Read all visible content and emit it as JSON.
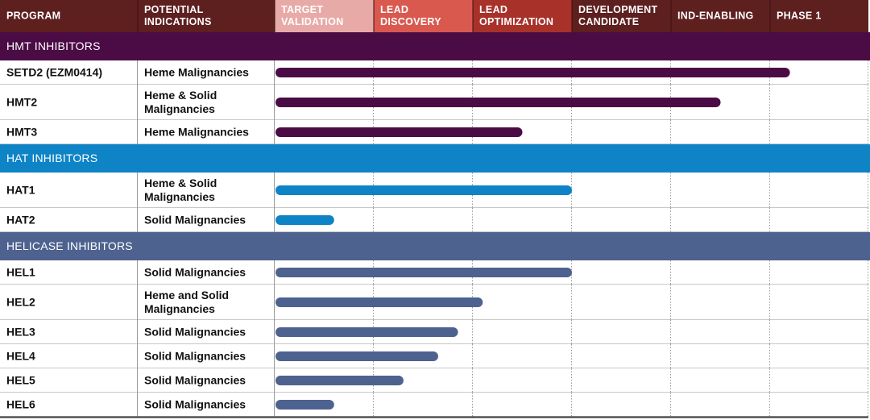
{
  "chart_data": {
    "type": "bar",
    "title": "",
    "columns": [
      {
        "label": "PROGRAM",
        "color": "#5e1f1f",
        "text_color": "#ffffff"
      },
      {
        "label": "POTENTIAL INDICATIONS",
        "color": "#5e1f1f",
        "text_color": "#ffffff"
      },
      {
        "label": "TARGET VALIDATION",
        "color": "#e8aaa6",
        "text_color": "#ffffff"
      },
      {
        "label": "LEAD DISCOVERY",
        "color": "#d9594f",
        "text_color": "#ffffff"
      },
      {
        "label": "LEAD OPTIMIZATION",
        "color": "#a8312a",
        "text_color": "#ffffff"
      },
      {
        "label": "DEVELOPMENT CANDIDATE",
        "color": "#5e1f1f",
        "text_color": "#ffffff"
      },
      {
        "label": "IND-ENABLING",
        "color": "#5e1f1f",
        "text_color": "#ffffff"
      },
      {
        "label": "PHASE 1",
        "color": "#5e1f1f",
        "text_color": "#ffffff"
      }
    ],
    "stages": [
      "TARGET VALIDATION",
      "LEAD DISCOVERY",
      "LEAD OPTIMIZATION",
      "DEVELOPMENT CANDIDATE",
      "IND-ENABLING",
      "PHASE 1"
    ],
    "value_units": "stages completed (0-6)",
    "sections": [
      {
        "label": "HMT INHIBITORS",
        "color": "#4b0c45",
        "bar_color": "#4b0c45",
        "rows": [
          {
            "program": "SETD2 (EZM0414)",
            "indication": "Heme Malignancies",
            "progress": 5.2
          },
          {
            "program": "HMT2",
            "indication": "Heme & Solid Malignancies",
            "progress": 4.5
          },
          {
            "program": "HMT3",
            "indication": "Heme Malignancies",
            "progress": 2.5
          }
        ]
      },
      {
        "label": "HAT INHIBITORS",
        "color": "#0e84c7",
        "bar_color": "#0e84c7",
        "rows": [
          {
            "program": "HAT1",
            "indication": "Heme & Solid Malignancies",
            "progress": 3.0
          },
          {
            "program": "HAT2",
            "indication": "Solid Malignancies",
            "progress": 0.6
          }
        ]
      },
      {
        "label": "HELICASE INHIBITORS",
        "color": "#4e628f",
        "bar_color": "#4e628f",
        "rows": [
          {
            "program": "HEL1",
            "indication": "Solid Malignancies",
            "progress": 3.0
          },
          {
            "program": "HEL2",
            "indication": "Heme and Solid Malignancies",
            "progress": 2.1
          },
          {
            "program": "HEL3",
            "indication": "Solid Malignancies",
            "progress": 1.85
          },
          {
            "program": "HEL4",
            "indication": "Solid Malignancies",
            "progress": 1.65
          },
          {
            "program": "HEL5",
            "indication": "Solid Malignancies",
            "progress": 1.3
          },
          {
            "program": "HEL6",
            "indication": "Solid Malignancies",
            "progress": 0.6
          }
        ]
      }
    ]
  }
}
